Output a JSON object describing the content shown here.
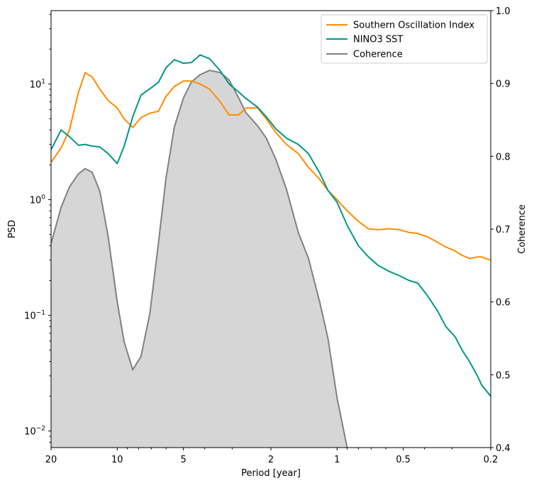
{
  "chart_data": {
    "type": "line",
    "title": "",
    "xlabel": "Period [year]",
    "ylabel_left": "PSD",
    "ylabel_right": "Coherence",
    "x_scale": "log",
    "x_inverted": true,
    "xlim": [
      20,
      0.2
    ],
    "y_left_scale": "log",
    "y_left_lim": [
      0.0072,
      43
    ],
    "y_right_lim": [
      0.4,
      1.0
    ],
    "grid": false,
    "legend_position": "top-right",
    "x_ticks": [
      {
        "value": 20,
        "label": "20"
      },
      {
        "value": 10,
        "label": "10"
      },
      {
        "value": 5,
        "label": "5"
      },
      {
        "value": 2,
        "label": "2"
      },
      {
        "value": 1,
        "label": "1"
      },
      {
        "value": 0.5,
        "label": "0.5"
      },
      {
        "value": 0.2,
        "label": "0.2"
      }
    ],
    "y_left_ticks": [
      {
        "value": 0.01,
        "base": "10",
        "exp": "−2"
      },
      {
        "value": 0.1,
        "base": "10",
        "exp": "−1"
      },
      {
        "value": 1,
        "base": "10",
        "exp": "0"
      },
      {
        "value": 10,
        "base": "10",
        "exp": "1"
      }
    ],
    "y_right_ticks": [
      "0.4",
      "0.5",
      "0.6",
      "0.7",
      "0.8",
      "0.9",
      "1.0"
    ],
    "series": [
      {
        "name": "Southern Oscillation Index",
        "axis": "left",
        "color": "#ff8c00",
        "points": [
          [
            20,
            2.1
          ],
          [
            18,
            2.8
          ],
          [
            16.5,
            4.0
          ],
          [
            15,
            8.5
          ],
          [
            14,
            12.5
          ],
          [
            13,
            11.5
          ],
          [
            12,
            9.0
          ],
          [
            11,
            7.2
          ],
          [
            10,
            6.2
          ],
          [
            9.3,
            5.0
          ],
          [
            8.5,
            4.2
          ],
          [
            7.8,
            5.1
          ],
          [
            7.1,
            5.6
          ],
          [
            6.5,
            5.8
          ],
          [
            6.0,
            7.8
          ],
          [
            5.5,
            9.5
          ],
          [
            5.0,
            10.6
          ],
          [
            4.6,
            10.6
          ],
          [
            4.2,
            10.0
          ],
          [
            3.8,
            9.0
          ],
          [
            3.4,
            7.0
          ],
          [
            3.1,
            5.4
          ],
          [
            2.8,
            5.4
          ],
          [
            2.6,
            6.2
          ],
          [
            2.3,
            6.2
          ],
          [
            2.1,
            5.0
          ],
          [
            1.9,
            3.8
          ],
          [
            1.7,
            3.0
          ],
          [
            1.5,
            2.5
          ],
          [
            1.35,
            1.9
          ],
          [
            1.2,
            1.5
          ],
          [
            1.1,
            1.2
          ],
          [
            1.0,
            1.0
          ],
          [
            0.9,
            0.8
          ],
          [
            0.8,
            0.65
          ],
          [
            0.72,
            0.56
          ],
          [
            0.65,
            0.55
          ],
          [
            0.58,
            0.56
          ],
          [
            0.52,
            0.55
          ],
          [
            0.47,
            0.52
          ],
          [
            0.43,
            0.51
          ],
          [
            0.39,
            0.48
          ],
          [
            0.35,
            0.43
          ],
          [
            0.32,
            0.39
          ],
          [
            0.29,
            0.36
          ],
          [
            0.27,
            0.33
          ],
          [
            0.25,
            0.31
          ],
          [
            0.23,
            0.32
          ],
          [
            0.22,
            0.32
          ],
          [
            0.2,
            0.3
          ]
        ]
      },
      {
        "name": "NINO3 SST",
        "axis": "left",
        "color": "#009688",
        "points": [
          [
            20,
            2.7
          ],
          [
            18,
            4.0
          ],
          [
            16.5,
            3.5
          ],
          [
            15,
            2.95
          ],
          [
            14,
            3.0
          ],
          [
            13,
            2.9
          ],
          [
            12,
            2.85
          ],
          [
            11,
            2.5
          ],
          [
            10,
            2.05
          ],
          [
            9.3,
            2.9
          ],
          [
            8.5,
            5.2
          ],
          [
            7.8,
            8.0
          ],
          [
            7.1,
            9.1
          ],
          [
            6.5,
            10.3
          ],
          [
            6.0,
            13.8
          ],
          [
            5.5,
            16.2
          ],
          [
            5.0,
            15.1
          ],
          [
            4.6,
            15.3
          ],
          [
            4.2,
            17.8
          ],
          [
            3.8,
            16.5
          ],
          [
            3.4,
            13.0
          ],
          [
            3.1,
            10.0
          ],
          [
            2.8,
            8.5
          ],
          [
            2.6,
            7.5
          ],
          [
            2.3,
            6.3
          ],
          [
            2.1,
            5.2
          ],
          [
            1.9,
            4.1
          ],
          [
            1.7,
            3.4
          ],
          [
            1.5,
            3.0
          ],
          [
            1.35,
            2.5
          ],
          [
            1.2,
            1.7
          ],
          [
            1.1,
            1.2
          ],
          [
            1.0,
            0.95
          ],
          [
            0.9,
            0.6
          ],
          [
            0.8,
            0.4
          ],
          [
            0.72,
            0.32
          ],
          [
            0.65,
            0.27
          ],
          [
            0.58,
            0.24
          ],
          [
            0.52,
            0.22
          ],
          [
            0.47,
            0.2
          ],
          [
            0.43,
            0.19
          ],
          [
            0.39,
            0.15
          ],
          [
            0.35,
            0.11
          ],
          [
            0.32,
            0.08
          ],
          [
            0.29,
            0.065
          ],
          [
            0.27,
            0.05
          ],
          [
            0.25,
            0.04
          ],
          [
            0.23,
            0.03
          ],
          [
            0.22,
            0.025
          ],
          [
            0.2,
            0.02
          ]
        ]
      },
      {
        "name": "Coherence",
        "axis": "right",
        "color": "#808080",
        "fill": "#d6d6d6",
        "points": [
          [
            20,
            0.68
          ],
          [
            18,
            0.73
          ],
          [
            16.5,
            0.758
          ],
          [
            15,
            0.776
          ],
          [
            14,
            0.783
          ],
          [
            13,
            0.778
          ],
          [
            12,
            0.752
          ],
          [
            11,
            0.69
          ],
          [
            10,
            0.6
          ],
          [
            9.3,
            0.545
          ],
          [
            8.5,
            0.507
          ],
          [
            7.8,
            0.525
          ],
          [
            7.1,
            0.585
          ],
          [
            6.5,
            0.68
          ],
          [
            6.0,
            0.77
          ],
          [
            5.5,
            0.84
          ],
          [
            5.0,
            0.88
          ],
          [
            4.6,
            0.902
          ],
          [
            4.2,
            0.912
          ],
          [
            3.8,
            0.918
          ],
          [
            3.4,
            0.915
          ],
          [
            3.1,
            0.905
          ],
          [
            2.8,
            0.88
          ],
          [
            2.6,
            0.86
          ],
          [
            2.3,
            0.842
          ],
          [
            2.1,
            0.825
          ],
          [
            1.9,
            0.796
          ],
          [
            1.7,
            0.755
          ],
          [
            1.5,
            0.695
          ],
          [
            1.35,
            0.66
          ],
          [
            1.2,
            0.6
          ],
          [
            1.1,
            0.55
          ],
          [
            1.0,
            0.468
          ],
          [
            0.9,
            0.4
          ]
        ]
      }
    ]
  }
}
